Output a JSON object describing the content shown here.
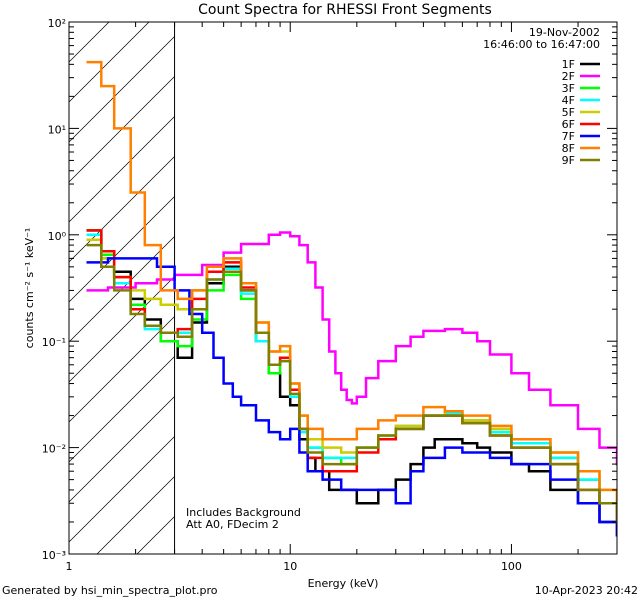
{
  "chart_data": {
    "type": "line",
    "step": true,
    "title": "Count Spectra for RHESSI Front Segments",
    "xlabel": "Energy (keV)",
    "ylabel": "counts cm⁻² s⁻¹ keV⁻¹",
    "xscale": "log",
    "yscale": "log",
    "xlim": [
      1,
      300
    ],
    "ylim": [
      0.001,
      100
    ],
    "x_ticks": [
      1,
      10,
      100
    ],
    "x_tick_labels": [
      "1",
      "10",
      "100"
    ],
    "y_ticks": [
      0.001,
      0.01,
      0.1,
      1,
      10,
      100
    ],
    "y_tick_labels": [
      "10⁻³",
      "10⁻²",
      "10⁻¹",
      "10⁰",
      "10¹",
      "10²"
    ],
    "date": "19-Nov-2002",
    "time_range": "16:46:00 to 16:47:00",
    "legend_position": "top-right",
    "hatched_region": [
      1,
      3
    ],
    "annotations": [
      "Includes Background",
      "Att A0, FDecim 2"
    ],
    "footer_left": "Generated by hsi_min_spectra_plot.pro",
    "footer_right": "10-Apr-2023 20:42",
    "series": [
      {
        "name": "1F",
        "color": "#000000",
        "x": [
          1.2,
          1.4,
          1.6,
          1.9,
          2.2,
          2.6,
          3.1,
          3.6,
          4.2,
          5,
          6,
          7,
          8,
          9,
          10,
          11,
          12,
          13,
          15,
          17,
          20,
          22,
          25,
          30,
          35,
          40,
          45,
          50,
          60,
          70,
          80,
          100,
          120,
          150,
          200,
          250,
          300
        ],
        "values": [
          1.1,
          0.7,
          0.45,
          0.25,
          0.16,
          0.1,
          0.07,
          0.15,
          0.35,
          0.5,
          0.3,
          0.1,
          0.05,
          0.03,
          0.025,
          0.012,
          0.008,
          0.006,
          0.004,
          0.004,
          0.003,
          0.003,
          0.004,
          0.005,
          0.007,
          0.01,
          0.012,
          0.012,
          0.011,
          0.01,
          0.009,
          0.007,
          0.006,
          0.004,
          0.003,
          0.002,
          0.0015
        ]
      },
      {
        "name": "2F",
        "color": "#ff00ff",
        "x": [
          1.2,
          1.5,
          2,
          2.5,
          3,
          4,
          5,
          6,
          8,
          9,
          10,
          11,
          12,
          13,
          14,
          15,
          16,
          17,
          18,
          19,
          20,
          22,
          25,
          30,
          35,
          40,
          50,
          60,
          70,
          80,
          100,
          120,
          150,
          200,
          250,
          300
        ],
        "values": [
          0.3,
          0.32,
          0.35,
          0.38,
          0.42,
          0.52,
          0.68,
          0.82,
          1.0,
          1.05,
          0.97,
          0.8,
          0.55,
          0.32,
          0.16,
          0.08,
          0.05,
          0.035,
          0.028,
          0.026,
          0.03,
          0.045,
          0.065,
          0.09,
          0.11,
          0.125,
          0.13,
          0.12,
          0.1,
          0.075,
          0.05,
          0.035,
          0.025,
          0.015,
          0.01,
          0.007
        ]
      },
      {
        "name": "3F",
        "color": "#00ff00",
        "x": [
          1.2,
          1.4,
          1.6,
          1.9,
          2.2,
          2.6,
          3.1,
          3.6,
          4.2,
          5,
          6,
          7,
          8,
          9,
          10,
          11,
          12,
          14,
          17,
          20,
          25,
          30,
          40,
          50,
          60,
          80,
          100,
          150,
          200,
          250,
          300
        ],
        "values": [
          1.1,
          0.65,
          0.4,
          0.22,
          0.14,
          0.1,
          0.09,
          0.16,
          0.3,
          0.42,
          0.25,
          0.1,
          0.05,
          0.07,
          0.035,
          0.015,
          0.01,
          0.008,
          0.007,
          0.01,
          0.012,
          0.015,
          0.02,
          0.02,
          0.018,
          0.014,
          0.011,
          0.008,
          0.005,
          0.003,
          0.002
        ]
      },
      {
        "name": "4F",
        "color": "#00ffff",
        "x": [
          1.2,
          1.4,
          1.6,
          1.9,
          2.2,
          2.6,
          3.1,
          3.6,
          4.2,
          5,
          6,
          7,
          8,
          9,
          10,
          11,
          12,
          14,
          17,
          20,
          25,
          30,
          40,
          50,
          60,
          80,
          100,
          150,
          200,
          250,
          300
        ],
        "values": [
          1.0,
          0.6,
          0.35,
          0.2,
          0.13,
          0.12,
          0.12,
          0.2,
          0.38,
          0.48,
          0.28,
          0.1,
          0.06,
          0.065,
          0.03,
          0.014,
          0.01,
          0.008,
          0.008,
          0.01,
          0.013,
          0.016,
          0.02,
          0.021,
          0.018,
          0.014,
          0.011,
          0.008,
          0.005,
          0.003,
          0.002
        ]
      },
      {
        "name": "5F",
        "color": "#cccc00",
        "x": [
          1.2,
          1.4,
          1.6,
          1.9,
          2.2,
          2.6,
          3.1,
          3.6,
          4.2,
          5,
          6,
          7,
          8,
          9,
          10,
          11,
          12,
          14,
          17,
          20,
          25,
          30,
          40,
          50,
          60,
          80,
          100,
          150,
          200,
          250,
          300
        ],
        "values": [
          0.9,
          0.6,
          0.4,
          0.3,
          0.25,
          0.22,
          0.2,
          0.3,
          0.45,
          0.55,
          0.35,
          0.15,
          0.08,
          0.08,
          0.04,
          0.02,
          0.012,
          0.01,
          0.009,
          0.01,
          0.013,
          0.016,
          0.02,
          0.022,
          0.018,
          0.015,
          0.012,
          0.009,
          0.006,
          0.004,
          0.0025
        ]
      },
      {
        "name": "6F",
        "color": "#ff0000",
        "x": [
          1.2,
          1.4,
          1.6,
          1.9,
          2.2,
          2.6,
          3.1,
          3.6,
          4.2,
          5,
          6,
          7,
          8,
          9,
          10,
          11,
          12,
          14,
          17,
          20,
          25,
          30,
          40,
          50,
          60,
          80,
          100,
          150,
          200,
          250,
          300
        ],
        "values": [
          1.1,
          0.7,
          0.4,
          0.2,
          0.14,
          0.12,
          0.13,
          0.25,
          0.45,
          0.55,
          0.32,
          0.12,
          0.06,
          0.07,
          0.035,
          0.015,
          0.008,
          0.006,
          0.006,
          0.009,
          0.012,
          0.015,
          0.02,
          0.02,
          0.017,
          0.013,
          0.01,
          0.007,
          0.004,
          0.003,
          0.002
        ]
      },
      {
        "name": "7F",
        "color": "#0000ff",
        "x": [
          1.2,
          1.5,
          2,
          2.5,
          3,
          3.5,
          4,
          4.5,
          5,
          5.5,
          6,
          7,
          8,
          9,
          10,
          11,
          12,
          14,
          17,
          20,
          25,
          30,
          35,
          40,
          50,
          60,
          80,
          100,
          150,
          200,
          250,
          300
        ],
        "values": [
          0.55,
          0.6,
          0.6,
          0.5,
          0.3,
          0.18,
          0.12,
          0.07,
          0.04,
          0.03,
          0.025,
          0.018,
          0.014,
          0.012,
          0.015,
          0.009,
          0.006,
          0.005,
          0.004,
          0.004,
          0.004,
          0.003,
          0.006,
          0.008,
          0.01,
          0.009,
          0.008,
          0.007,
          0.005,
          0.003,
          0.002,
          0.0015
        ]
      },
      {
        "name": "8F",
        "color": "#ff8000",
        "x": [
          1.2,
          1.4,
          1.6,
          1.9,
          2.2,
          2.6,
          3.1,
          3.6,
          4.2,
          5,
          6,
          7,
          8,
          9,
          10,
          11,
          12,
          14,
          17,
          20,
          25,
          30,
          40,
          50,
          60,
          80,
          100,
          150,
          200,
          250,
          300
        ],
        "values": [
          42,
          25,
          10,
          2.5,
          0.8,
          0.3,
          0.25,
          0.3,
          0.5,
          0.6,
          0.35,
          0.15,
          0.08,
          0.09,
          0.04,
          0.02,
          0.015,
          0.012,
          0.012,
          0.015,
          0.018,
          0.02,
          0.024,
          0.022,
          0.02,
          0.016,
          0.012,
          0.009,
          0.006,
          0.004,
          0.003
        ]
      },
      {
        "name": "9F",
        "color": "#808000",
        "x": [
          1.2,
          1.4,
          1.6,
          1.9,
          2.2,
          2.6,
          3.1,
          3.6,
          4.2,
          5,
          6,
          7,
          8,
          9,
          10,
          11,
          12,
          14,
          17,
          20,
          25,
          30,
          40,
          50,
          60,
          80,
          100,
          150,
          200,
          250,
          300
        ],
        "values": [
          0.8,
          0.5,
          0.3,
          0.18,
          0.14,
          0.12,
          0.11,
          0.2,
          0.38,
          0.45,
          0.3,
          0.12,
          0.06,
          0.065,
          0.032,
          0.015,
          0.009,
          0.007,
          0.007,
          0.01,
          0.013,
          0.015,
          0.02,
          0.02,
          0.017,
          0.013,
          0.01,
          0.007,
          0.004,
          0.003,
          0.002
        ]
      }
    ]
  }
}
